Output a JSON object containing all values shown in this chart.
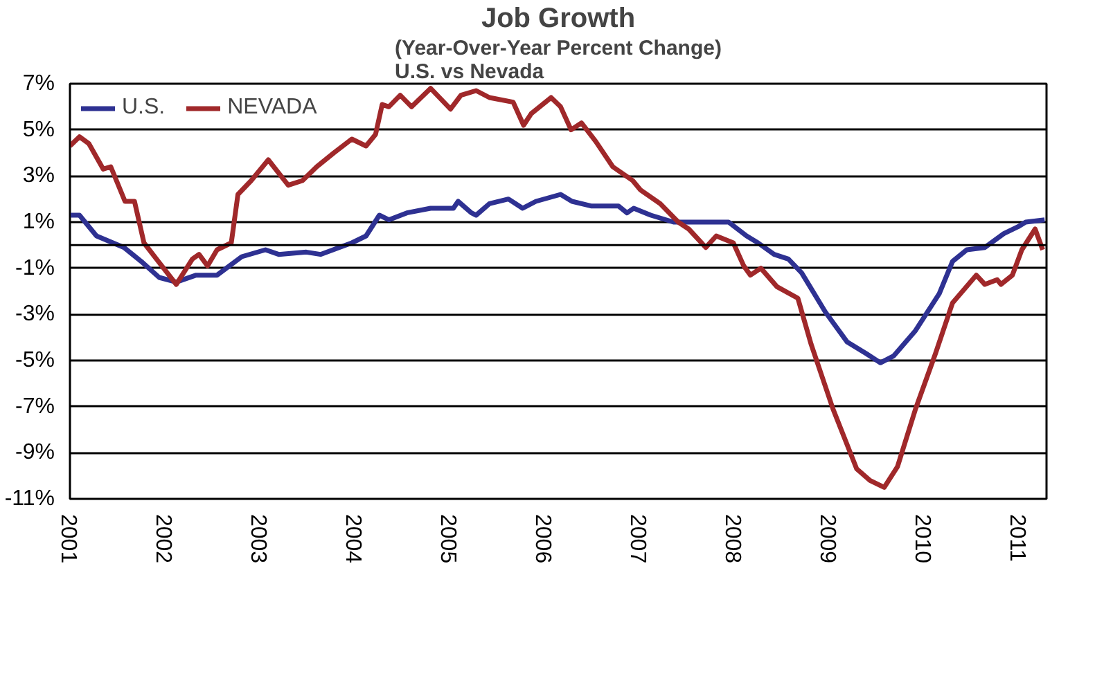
{
  "chart_data": {
    "type": "line",
    "title": "Job Growth",
    "subtitle": "(Year-Over-Year Percent Change)\nU.S. vs Nevada",
    "series": [
      {
        "name": "U.S.",
        "color": "#2e3192",
        "x": [
          2001.0,
          2001.1,
          2001.28,
          2001.57,
          2001.75,
          2001.94,
          2002.12,
          2002.33,
          2002.55,
          2002.81,
          2003.06,
          2003.2,
          2003.49,
          2003.64,
          2003.97,
          2004.12,
          2004.26,
          2004.36,
          2004.55,
          2004.8,
          2005.04,
          2005.09,
          2005.23,
          2005.28,
          2005.42,
          2005.62,
          2005.77,
          2005.91,
          2006.17,
          2006.29,
          2006.49,
          2006.78,
          2006.87,
          2006.94,
          2007.12,
          2007.36,
          2007.59,
          2007.94,
          2008.13,
          2008.25,
          2008.42,
          2008.57,
          2008.71,
          2008.96,
          2009.19,
          2009.39,
          2009.54,
          2009.68,
          2009.91,
          2010.16,
          2010.3,
          2010.45,
          2010.64,
          2010.84,
          2010.99,
          2011.07,
          2011.27
        ],
        "values": [
          1.3,
          1.3,
          0.4,
          -0.1,
          -0.7,
          -1.4,
          -1.6,
          -1.3,
          -1.3,
          -0.5,
          -0.2,
          -0.4,
          -0.3,
          -0.4,
          0.1,
          0.4,
          1.3,
          1.1,
          1.4,
          1.6,
          1.6,
          1.9,
          1.4,
          1.3,
          1.8,
          2.0,
          1.6,
          1.9,
          2.2,
          1.9,
          1.7,
          1.7,
          1.4,
          1.6,
          1.3,
          1.0,
          1.0,
          1.0,
          0.4,
          0.1,
          -0.4,
          -0.6,
          -1.2,
          -2.9,
          -4.2,
          -4.7,
          -5.1,
          -4.8,
          -3.7,
          -2.1,
          -0.7,
          -0.2,
          -0.1,
          0.5,
          0.8,
          1.0,
          1.1
        ]
      },
      {
        "name": "NEVADA",
        "color": "#a0282a",
        "x": [
          2001.0,
          2001.1,
          2001.2,
          2001.35,
          2001.43,
          2001.58,
          2001.68,
          2001.78,
          2001.93,
          2002.12,
          2002.29,
          2002.36,
          2002.45,
          2002.55,
          2002.7,
          2002.77,
          2002.91,
          2003.09,
          2003.3,
          2003.45,
          2003.6,
          2003.78,
          2003.97,
          2004.12,
          2004.22,
          2004.29,
          2004.36,
          2004.48,
          2004.6,
          2004.8,
          2005.01,
          2005.12,
          2005.28,
          2005.42,
          2005.67,
          2005.78,
          2005.86,
          2006.07,
          2006.17,
          2006.28,
          2006.39,
          2006.54,
          2006.72,
          2006.93,
          2007.01,
          2007.22,
          2007.41,
          2007.52,
          2007.7,
          2007.81,
          2007.99,
          2008.1,
          2008.17,
          2008.28,
          2008.45,
          2008.67,
          2008.81,
          2009.04,
          2009.29,
          2009.43,
          2009.58,
          2009.72,
          2009.91,
          2010.12,
          2010.3,
          2010.55,
          2010.64,
          2010.77,
          2010.81,
          2010.93,
          2011.03,
          2011.17,
          2011.25
        ],
        "values": [
          4.3,
          4.7,
          4.4,
          3.3,
          3.4,
          1.9,
          1.9,
          0.1,
          -0.7,
          -1.7,
          -0.6,
          -0.4,
          -0.9,
          -0.2,
          0.1,
          2.2,
          2.8,
          3.7,
          2.6,
          2.8,
          3.4,
          4.0,
          4.6,
          4.3,
          4.8,
          6.1,
          6.0,
          6.5,
          6.0,
          6.8,
          5.9,
          6.5,
          6.7,
          6.4,
          6.2,
          5.2,
          5.7,
          6.4,
          6.0,
          5.0,
          5.3,
          4.5,
          3.4,
          2.8,
          2.4,
          1.8,
          1.0,
          0.7,
          -0.1,
          0.4,
          0.1,
          -0.9,
          -1.3,
          -1.0,
          -1.8,
          -2.3,
          -4.3,
          -7.1,
          -9.7,
          -10.2,
          -10.5,
          -9.6,
          -7.1,
          -4.7,
          -2.5,
          -1.3,
          -1.7,
          -1.5,
          -1.7,
          -1.3,
          -0.2,
          0.7,
          -0.2
        ]
      }
    ],
    "xlim": [
      2001,
      2011.29
    ],
    "xticks": [
      2001,
      2002,
      2003,
      2004,
      2005,
      2006,
      2007,
      2008,
      2009,
      2010,
      2011
    ],
    "ylim": [
      -11,
      7
    ],
    "yticks": [
      {
        "value": 7,
        "label": "7%"
      },
      {
        "value": 5,
        "label": "5%"
      },
      {
        "value": 3,
        "label": "3%"
      },
      {
        "value": 1,
        "label": "1%"
      },
      {
        "value": -1,
        "label": "-1%"
      },
      {
        "value": -3,
        "label": "-3%"
      },
      {
        "value": -5,
        "label": "-5%"
      },
      {
        "value": -7,
        "label": "-7%"
      },
      {
        "value": -9,
        "label": "-9%"
      },
      {
        "value": -11,
        "label": "-11%"
      }
    ],
    "ref_lines": [
      {
        "axis": "y",
        "value": 0,
        "color": "#000000"
      }
    ],
    "grid": "y",
    "legend": "top left",
    "marker": "none",
    "line_style": "solid"
  }
}
